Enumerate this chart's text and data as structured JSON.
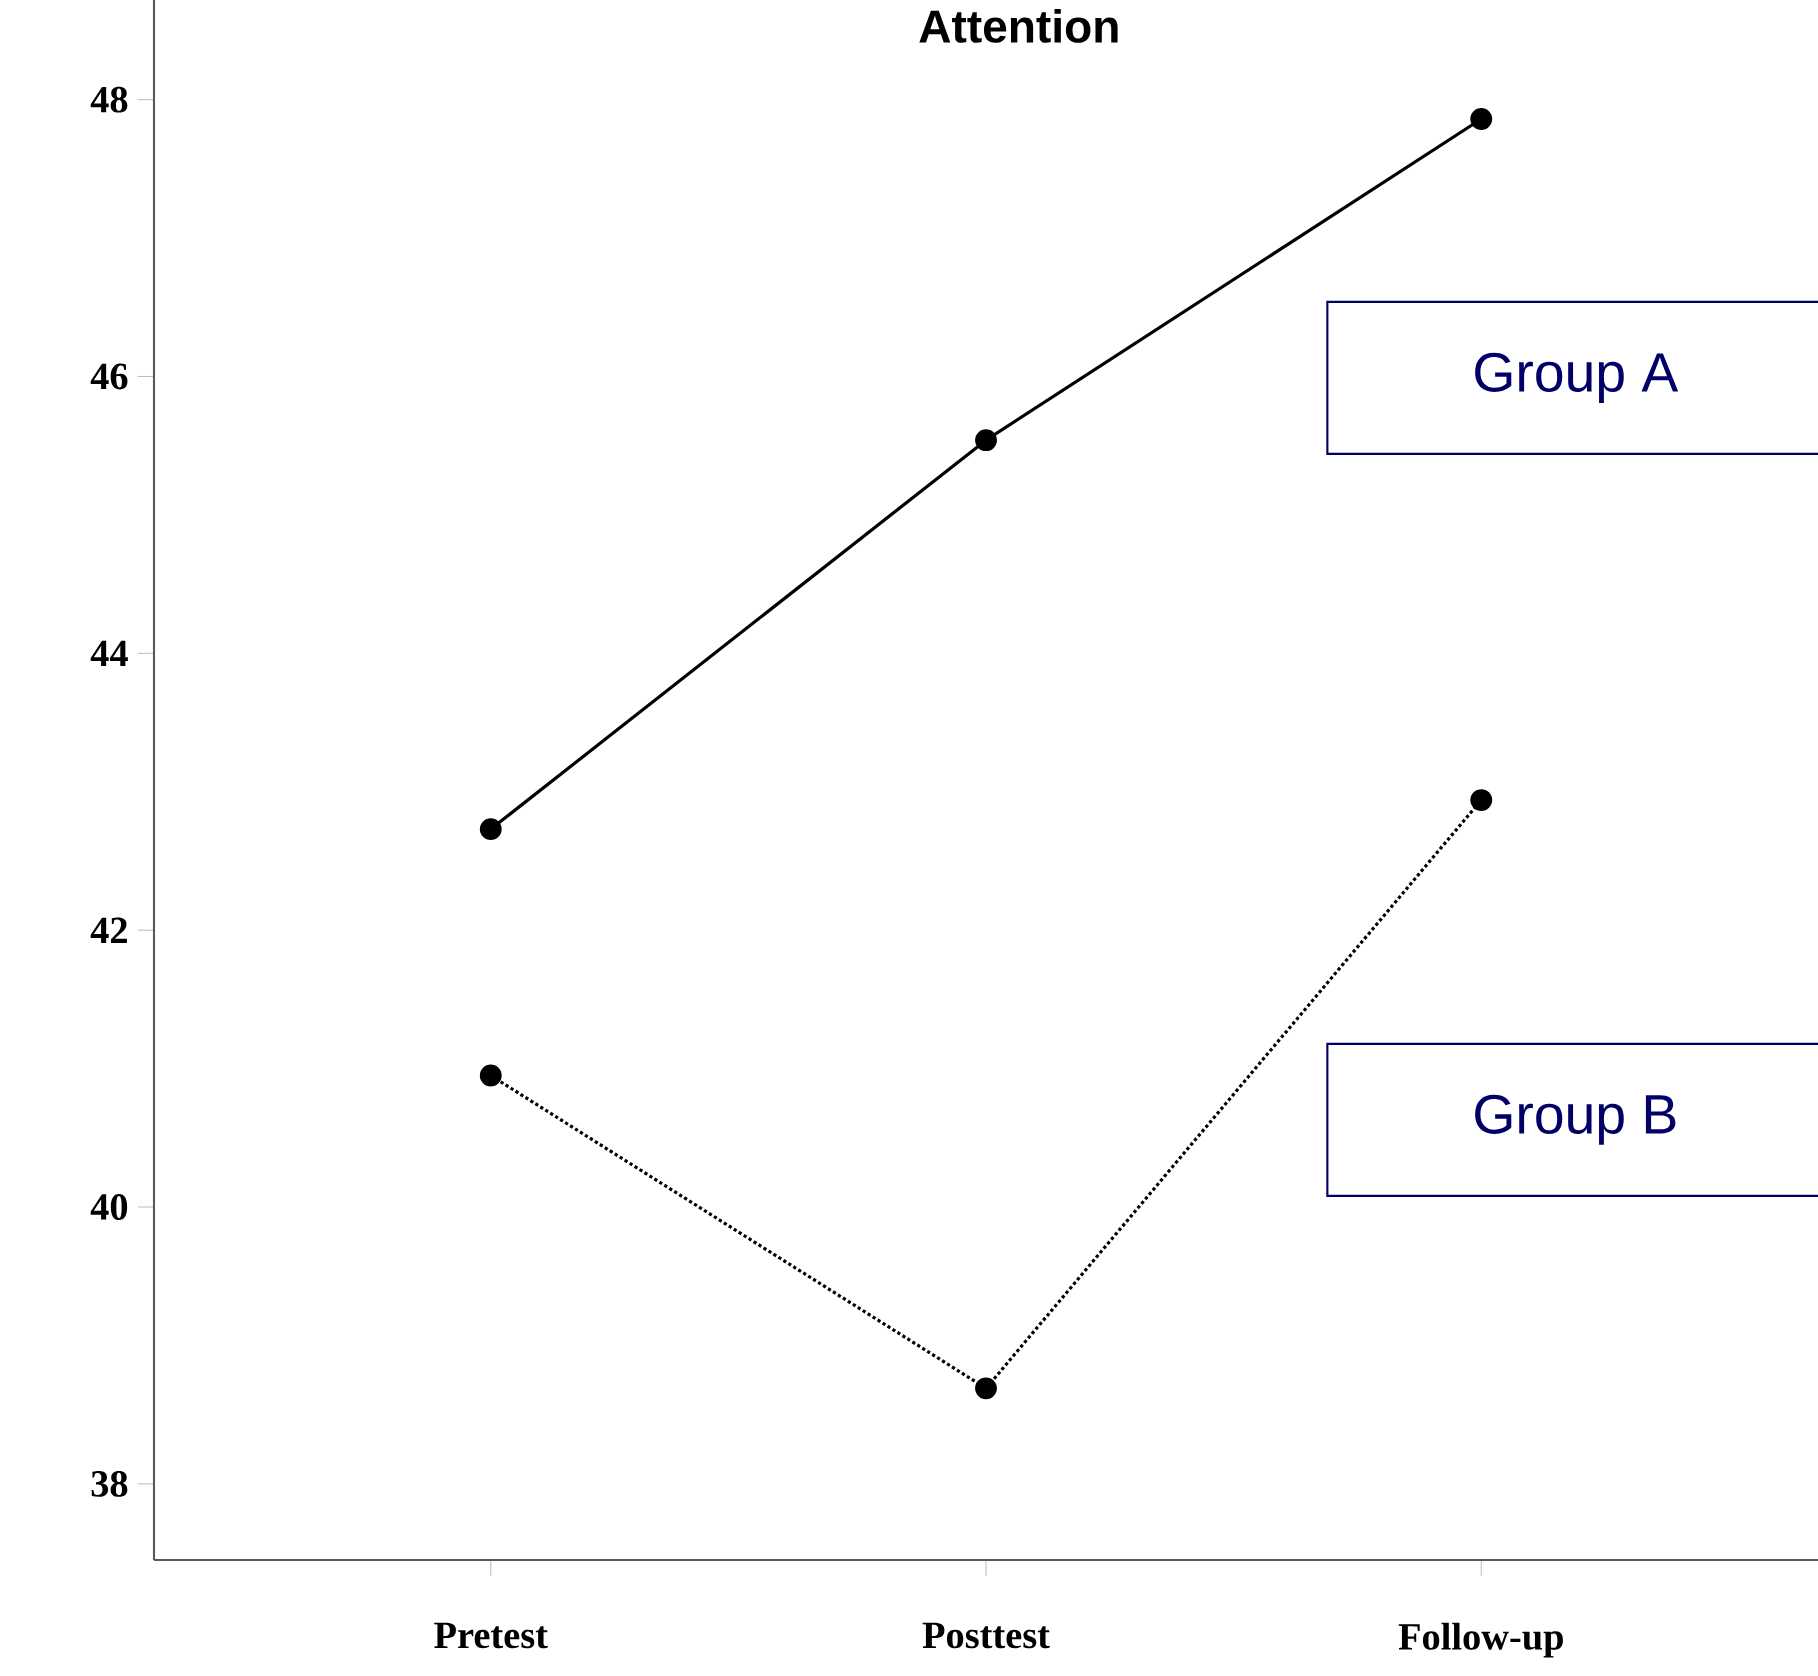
{
  "chart_data": {
    "type": "line",
    "title": "Attention",
    "categories": [
      "Pretest",
      "Posttest",
      "Follow-up"
    ],
    "ylim": [
      37.45,
      48.72
    ],
    "yticks": [
      38,
      40,
      42,
      44,
      46,
      48
    ],
    "marker": "circle",
    "legend": false,
    "series": [
      {
        "name": "Group A",
        "color": "#000000",
        "line_style": "solid",
        "values": [
          42.73,
          45.54,
          47.86
        ]
      },
      {
        "name": "Group B",
        "color": "#000000",
        "line_style": "dotted",
        "values": [
          40.95,
          38.69,
          42.94
        ]
      }
    ]
  }
}
